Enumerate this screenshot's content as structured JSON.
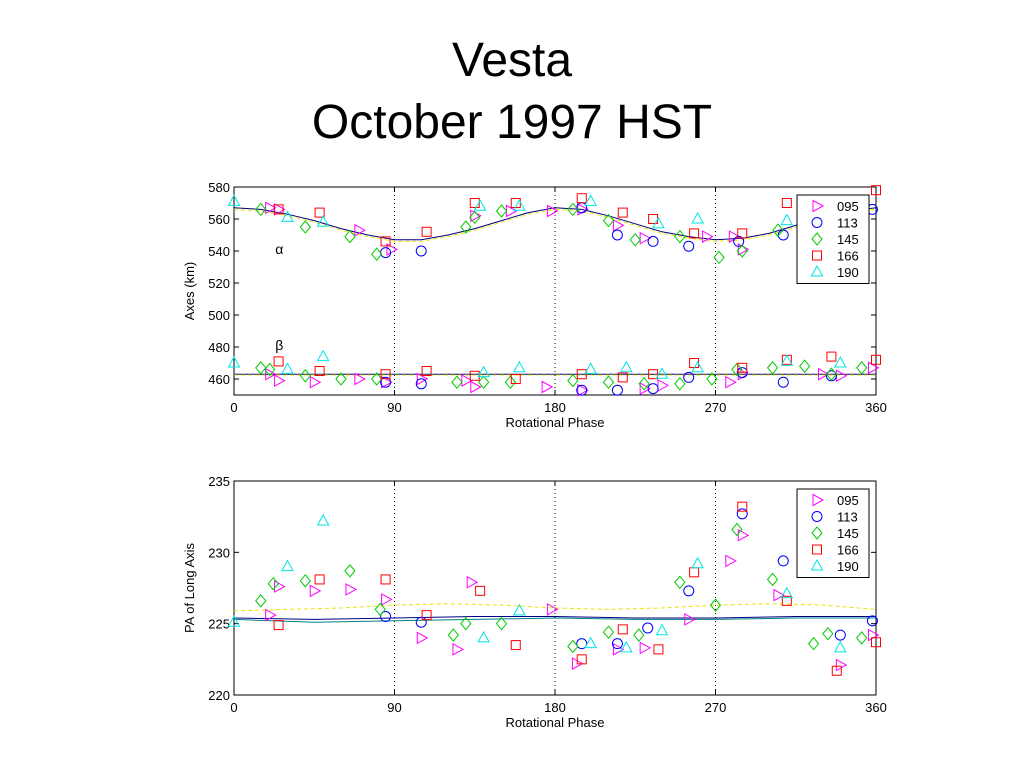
{
  "slide": {
    "title_line1": "Vesta",
    "title_line2": "October 1997 HST"
  },
  "marker_style": {
    "095": {
      "shape": "triangle-right",
      "color": "#ff00ff"
    },
    "113": {
      "shape": "circle",
      "color": "#0000ff"
    },
    "145": {
      "shape": "diamond",
      "color": "#00cc00"
    },
    "166": {
      "shape": "square",
      "color": "#ff0000"
    },
    "190": {
      "shape": "triangle-up",
      "color": "#00e5e5"
    }
  },
  "chart_data": [
    {
      "type": "scatter",
      "title": "",
      "xlabel": "Rotational Phase",
      "ylabel": "Axes (km)",
      "xlim": [
        0,
        360
      ],
      "ylim": [
        450,
        580
      ],
      "xticks": [
        0,
        90,
        180,
        270,
        360
      ],
      "yticks": [
        460,
        480,
        500,
        520,
        540,
        560,
        580
      ],
      "vlines": [
        90,
        180,
        270
      ],
      "legend_position": "top-right",
      "annotations": [
        {
          "text": "α",
          "x": 22,
          "y": 538
        },
        {
          "text": "β",
          "x": 22,
          "y": 478
        }
      ],
      "fits": [
        {
          "color": "#000080",
          "x": [
            0,
            15,
            30,
            45,
            60,
            75,
            90,
            105,
            120,
            135,
            150,
            165,
            180,
            195,
            210,
            225,
            240,
            255,
            270,
            285,
            300,
            315,
            330,
            345,
            360
          ],
          "y": [
            567,
            566,
            563,
            559,
            554,
            550,
            547,
            547,
            550,
            554,
            559,
            564,
            567,
            566,
            562,
            557,
            552,
            549,
            547,
            548,
            551,
            556,
            561,
            565,
            567
          ]
        },
        {
          "color": "#e6e600",
          "dashed": true,
          "x": [
            0,
            15,
            30,
            45,
            60,
            75,
            90,
            105,
            120,
            135,
            150,
            165,
            180,
            195,
            210,
            225,
            240,
            255,
            270,
            285,
            300,
            315,
            330,
            345,
            360
          ],
          "y": [
            566,
            565,
            562,
            558,
            553,
            549,
            546,
            546,
            549,
            553,
            558,
            563,
            566,
            565,
            561,
            556,
            551,
            548,
            546,
            547,
            550,
            555,
            560,
            564,
            566
          ]
        },
        {
          "color": "#000080",
          "x": [
            0,
            90,
            180,
            270,
            360
          ],
          "y": [
            463,
            463,
            463,
            463,
            463
          ]
        },
        {
          "color": "#e6e600",
          "dashed": true,
          "x": [
            0,
            90,
            180,
            270,
            360
          ],
          "y": [
            462.5,
            462.5,
            462.5,
            462.5,
            462.5
          ]
        }
      ],
      "series": [
        {
          "name": "095",
          "points": [
            [
              20,
              567
            ],
            [
              25,
              566
            ],
            [
              70,
              553
            ],
            [
              88,
              541
            ],
            [
              135,
              562
            ],
            [
              155,
              565
            ],
            [
              178,
              565
            ],
            [
              195,
              566
            ],
            [
              215,
              556
            ],
            [
              230,
              548
            ],
            [
              265,
              549
            ],
            [
              280,
              549
            ],
            [
              285,
              541
            ],
            [
              20,
              463
            ],
            [
              25,
              459
            ],
            [
              45,
              458
            ],
            [
              70,
              460
            ],
            [
              85,
              458
            ],
            [
              105,
              460
            ],
            [
              130,
              459
            ],
            [
              135,
              455
            ],
            [
              175,
              455
            ],
            [
              195,
              453
            ],
            [
              230,
              454
            ],
            [
              240,
              456
            ],
            [
              278,
              458
            ],
            [
              285,
              463
            ],
            [
              330,
              463
            ],
            [
              340,
              462
            ],
            [
              358,
              467
            ]
          ]
        },
        {
          "name": "113",
          "points": [
            [
              85,
              539
            ],
            [
              105,
              540
            ],
            [
              195,
              567
            ],
            [
              215,
              550
            ],
            [
              235,
              546
            ],
            [
              255,
              543
            ],
            [
              283,
              546
            ],
            [
              308,
              550
            ],
            [
              358,
              566
            ],
            [
              85,
              458
            ],
            [
              105,
              457
            ],
            [
              195,
              453
            ],
            [
              215,
              453
            ],
            [
              235,
              454
            ],
            [
              255,
              461
            ],
            [
              285,
              464
            ],
            [
              308,
              458
            ],
            [
              335,
              462
            ]
          ]
        },
        {
          "name": "145",
          "points": [
            [
              15,
              566
            ],
            [
              40,
              555
            ],
            [
              65,
              549
            ],
            [
              80,
              538
            ],
            [
              130,
              555
            ],
            [
              135,
              561
            ],
            [
              150,
              565
            ],
            [
              190,
              566
            ],
            [
              210,
              559
            ],
            [
              225,
              547
            ],
            [
              250,
              549
            ],
            [
              272,
              536
            ],
            [
              285,
              540
            ],
            [
              305,
              553
            ],
            [
              15,
              467
            ],
            [
              20,
              466
            ],
            [
              40,
              462
            ],
            [
              60,
              460
            ],
            [
              80,
              460
            ],
            [
              125,
              458
            ],
            [
              140,
              458
            ],
            [
              155,
              458
            ],
            [
              190,
              459
            ],
            [
              210,
              458
            ],
            [
              230,
              457
            ],
            [
              250,
              457
            ],
            [
              268,
              460
            ],
            [
              282,
              466
            ],
            [
              302,
              467
            ],
            [
              320,
              468
            ],
            [
              335,
              463
            ],
            [
              352,
              467
            ]
          ]
        },
        {
          "name": "166",
          "points": [
            [
              25,
              566
            ],
            [
              48,
              564
            ],
            [
              85,
              546
            ],
            [
              108,
              552
            ],
            [
              135,
              570
            ],
            [
              158,
              570
            ],
            [
              195,
              573
            ],
            [
              218,
              564
            ],
            [
              235,
              560
            ],
            [
              258,
              551
            ],
            [
              285,
              551
            ],
            [
              310,
              570
            ],
            [
              360,
              578
            ],
            [
              25,
              471
            ],
            [
              48,
              465
            ],
            [
              85,
              463
            ],
            [
              108,
              465
            ],
            [
              135,
              462
            ],
            [
              158,
              460
            ],
            [
              195,
              463
            ],
            [
              218,
              461
            ],
            [
              235,
              463
            ],
            [
              258,
              470
            ],
            [
              285,
              467
            ],
            [
              310,
              472
            ],
            [
              335,
              474
            ],
            [
              360,
              472
            ]
          ]
        },
        {
          "name": "190",
          "points": [
            [
              0,
              571
            ],
            [
              30,
              561
            ],
            [
              50,
              558
            ],
            [
              138,
              568
            ],
            [
              160,
              568
            ],
            [
              200,
              571
            ],
            [
              238,
              557
            ],
            [
              260,
              560
            ],
            [
              310,
              559
            ],
            [
              0,
              470
            ],
            [
              30,
              466
            ],
            [
              50,
              474
            ],
            [
              140,
              464
            ],
            [
              160,
              467
            ],
            [
              200,
              466
            ],
            [
              220,
              467
            ],
            [
              240,
              463
            ],
            [
              260,
              467
            ],
            [
              310,
              471
            ],
            [
              340,
              470
            ]
          ]
        }
      ]
    },
    {
      "type": "scatter",
      "title": "",
      "xlabel": "Rotational Phase",
      "ylabel": "PA of Long Axis",
      "xlim": [
        0,
        360
      ],
      "ylim": [
        220,
        235
      ],
      "xticks": [
        0,
        90,
        180,
        270,
        360
      ],
      "yticks": [
        220,
        225,
        230,
        235
      ],
      "vlines": [
        90,
        180,
        270
      ],
      "legend_position": "top-right",
      "fits": [
        {
          "color": "#000080",
          "x": [
            0,
            45,
            90,
            135,
            180,
            225,
            270,
            315,
            360
          ],
          "y": [
            225.4,
            225.3,
            225.4,
            225.5,
            225.5,
            225.4,
            225.4,
            225.5,
            225.5
          ]
        },
        {
          "color": "#008080",
          "x": [
            0,
            45,
            90,
            135,
            180,
            225,
            270,
            315,
            360
          ],
          "y": [
            225.3,
            225.1,
            225.2,
            225.3,
            225.4,
            225.3,
            225.3,
            225.4,
            225.4
          ]
        },
        {
          "color": "#e6e600",
          "dashed": true,
          "x": [
            0,
            30,
            60,
            90,
            120,
            150,
            180,
            210,
            240,
            270,
            300,
            330,
            360
          ],
          "y": [
            225.9,
            226.0,
            226.1,
            226.3,
            226.4,
            226.3,
            226.1,
            226.0,
            226.1,
            226.3,
            226.4,
            226.3,
            226.0
          ]
        }
      ],
      "series": [
        {
          "name": "095",
          "points": [
            [
              20,
              225.6
            ],
            [
              25,
              227.6
            ],
            [
              45,
              227.3
            ],
            [
              65,
              227.4
            ],
            [
              85,
              226.7
            ],
            [
              105,
              224.0
            ],
            [
              125,
              223.2
            ],
            [
              133,
              227.9
            ],
            [
              178,
              226.0
            ],
            [
              192,
              222.2
            ],
            [
              215,
              223.2
            ],
            [
              230,
              223.3
            ],
            [
              255,
              225.3
            ],
            [
              278,
              229.4
            ],
            [
              285,
              231.2
            ],
            [
              305,
              227.0
            ],
            [
              340,
              222.1
            ],
            [
              358,
              224.2
            ]
          ]
        },
        {
          "name": "113",
          "points": [
            [
              85,
              225.5
            ],
            [
              105,
              225.1
            ],
            [
              195,
              223.6
            ],
            [
              215,
              223.6
            ],
            [
              232,
              224.7
            ],
            [
              255,
              227.3
            ],
            [
              285,
              232.7
            ],
            [
              308,
              229.4
            ],
            [
              340,
              224.2
            ],
            [
              358,
              225.2
            ]
          ]
        },
        {
          "name": "145",
          "points": [
            [
              15,
              226.6
            ],
            [
              22,
              227.8
            ],
            [
              40,
              228.0
            ],
            [
              65,
              228.7
            ],
            [
              82,
              226.0
            ],
            [
              123,
              224.2
            ],
            [
              130,
              225.0
            ],
            [
              150,
              225.0
            ],
            [
              190,
              223.4
            ],
            [
              210,
              224.4
            ],
            [
              227,
              224.2
            ],
            [
              250,
              227.9
            ],
            [
              270,
              226.3
            ],
            [
              282,
              231.6
            ],
            [
              302,
              228.1
            ],
            [
              325,
              223.6
            ],
            [
              333,
              224.3
            ],
            [
              352,
              224.0
            ]
          ]
        },
        {
          "name": "166",
          "points": [
            [
              25,
              224.9
            ],
            [
              48,
              228.1
            ],
            [
              85,
              228.1
            ],
            [
              108,
              225.6
            ],
            [
              138,
              227.3
            ],
            [
              158,
              223.5
            ],
            [
              195,
              222.5
            ],
            [
              218,
              224.6
            ],
            [
              238,
              223.2
            ],
            [
              258,
              228.6
            ],
            [
              285,
              233.2
            ],
            [
              310,
              226.6
            ],
            [
              338,
              221.7
            ],
            [
              360,
              223.7
            ]
          ]
        },
        {
          "name": "190",
          "points": [
            [
              0,
              225.1
            ],
            [
              30,
              229.0
            ],
            [
              50,
              232.2
            ],
            [
              140,
              224.0
            ],
            [
              160,
              225.9
            ],
            [
              200,
              223.6
            ],
            [
              220,
              223.3
            ],
            [
              240,
              224.5
            ],
            [
              260,
              229.2
            ],
            [
              310,
              227.1
            ],
            [
              340,
              223.3
            ]
          ]
        }
      ]
    }
  ]
}
